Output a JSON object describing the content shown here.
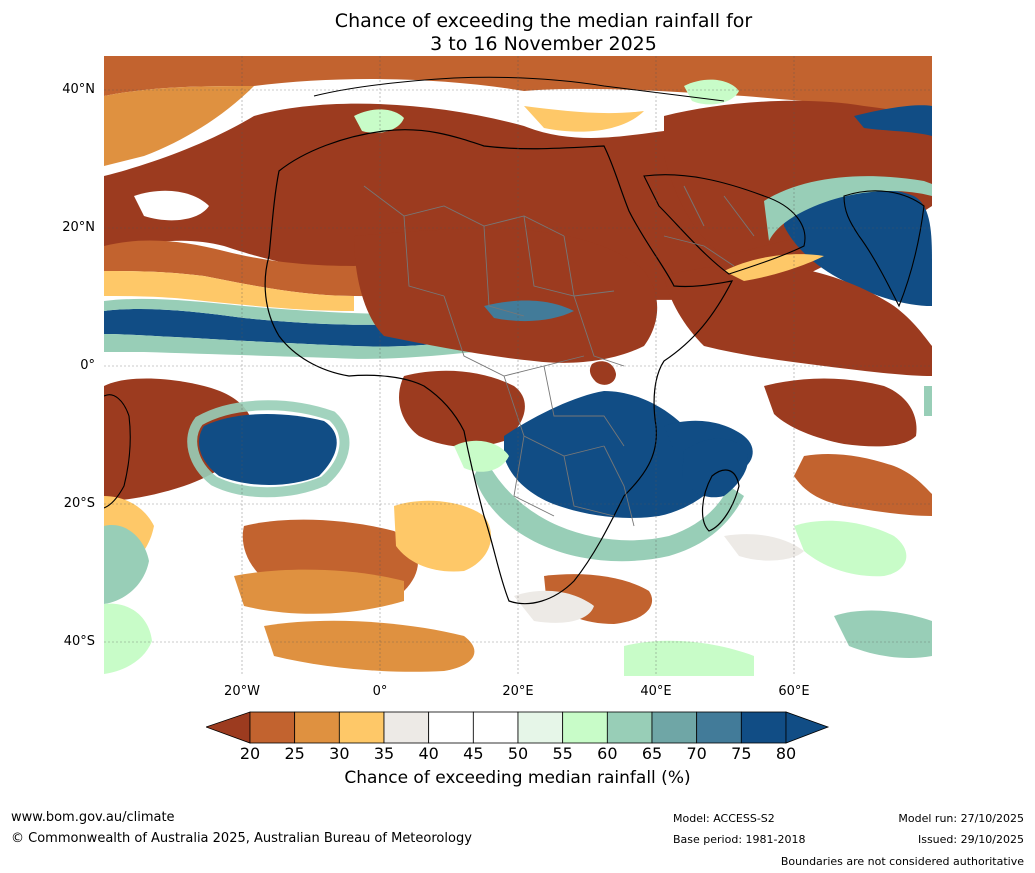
{
  "title": {
    "line1": "Chance of exceeding the median rainfall for",
    "line2": "3 to 16 November 2025"
  },
  "map": {
    "region": "Africa",
    "lat_labels": [
      "40°N",
      "20°N",
      "0°",
      "20°S",
      "40°S"
    ],
    "lon_labels": [
      "20°W",
      "0°",
      "20°E",
      "40°E",
      "60°E"
    ]
  },
  "colorbar": {
    "ticks": [
      "20",
      "25",
      "30",
      "35",
      "40",
      "45",
      "50",
      "55",
      "60",
      "65",
      "70",
      "75",
      "80"
    ],
    "colors": [
      "#9c3b1f",
      "#c2632f",
      "#df9140",
      "#fec868",
      "#edeae6",
      "#ffffff",
      "#ffffff",
      "#e6f6e8",
      "#c8fcc8",
      "#98ceb7",
      "#6fa6a6",
      "#427b99",
      "#114d85"
    ],
    "label": "Chance of exceeding median rainfall (%)"
  },
  "footer": {
    "website": "www.bom.gov.au/climate",
    "copyright": "© Commonwealth of Australia 2025, Australian Bureau of Meteorology",
    "model": "Model: ACCESS-S2",
    "base_period": "Base period: 1981-2018",
    "model_run": "Model run: 27/10/2025",
    "issued": "Issued: 29/10/2025",
    "disclaimer": "Boundaries are not considered authoritative"
  }
}
